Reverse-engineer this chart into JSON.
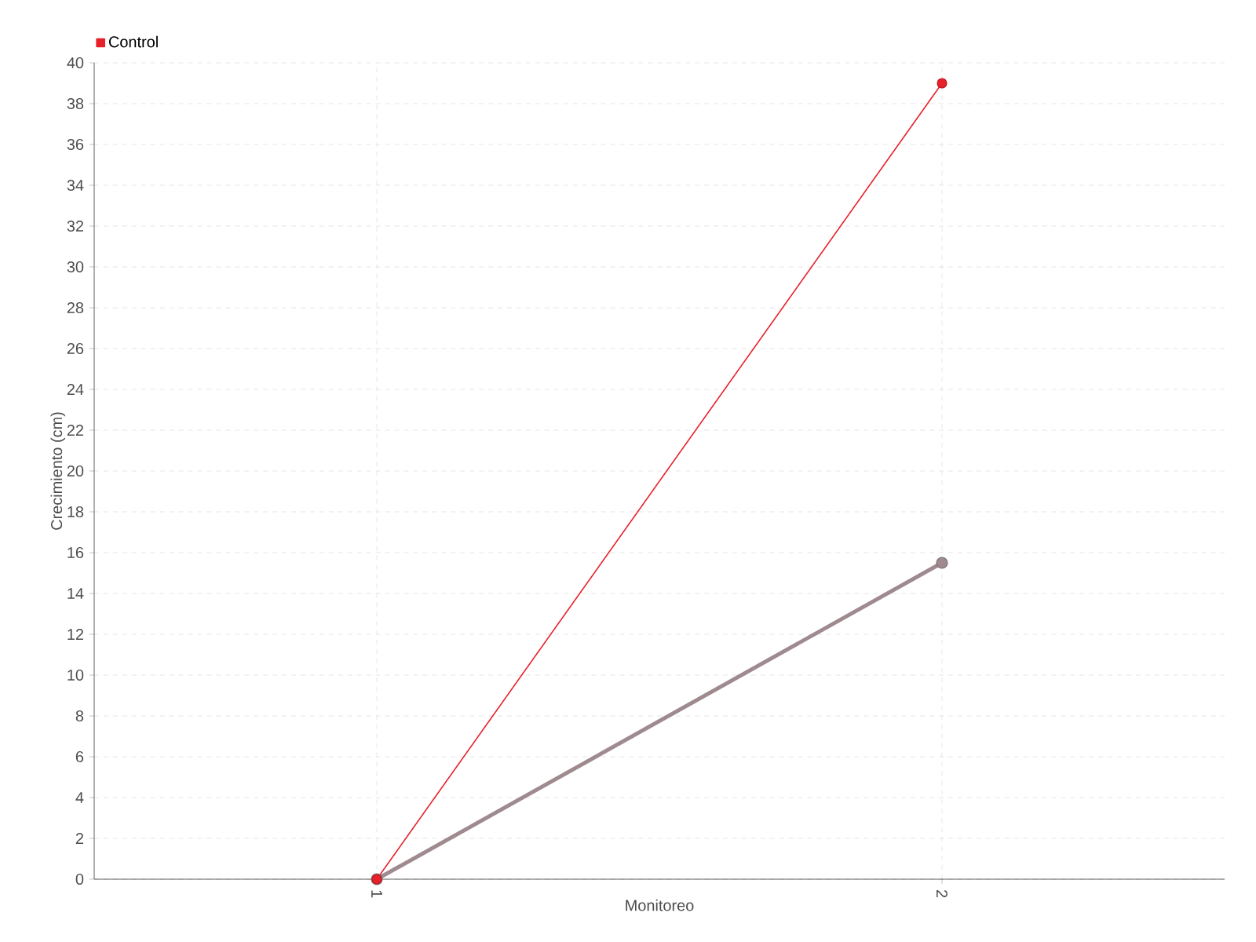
{
  "chart_data": {
    "type": "line",
    "xlabel": "Monitoreo",
    "ylabel": "Crecimiento (cm)",
    "categories": [
      "1",
      "2"
    ],
    "series": [
      {
        "color": "#9e8a8f",
        "values": [
          0,
          15.5
        ]
      },
      {
        "name": "Control",
        "color": "#e8202a",
        "values": [
          0,
          39
        ]
      }
    ],
    "ylim": [
      0,
      40
    ],
    "yticks": [
      0,
      2,
      4,
      6,
      8,
      10,
      12,
      14,
      16,
      18,
      20,
      22,
      24,
      26,
      28,
      30,
      32,
      34,
      36,
      38,
      40
    ],
    "grid": true,
    "legend": "top left",
    "marker": "circle",
    "line_style": "solid"
  }
}
